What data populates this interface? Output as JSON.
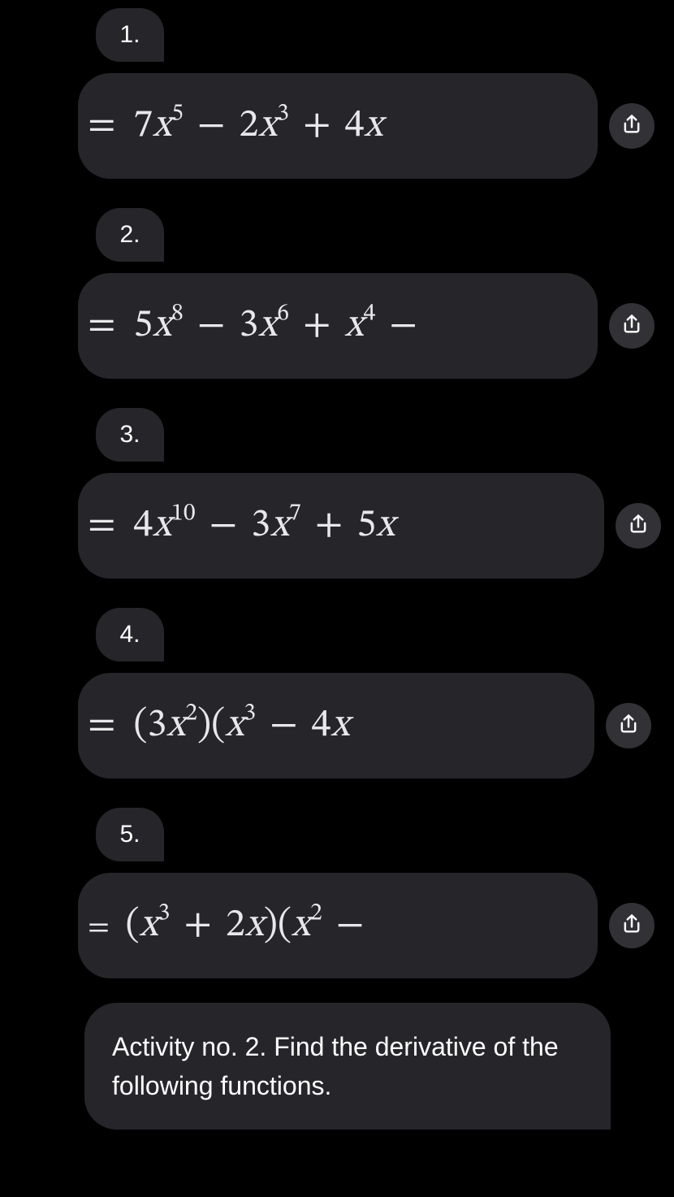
{
  "colors": {
    "background": "#000000",
    "bubble_bg": "#26262a",
    "share_bg": "#323236",
    "text": "#ffffff",
    "equation_text": "#e8e8ea"
  },
  "typography": {
    "number_fontsize": 30,
    "equation_fontsize": 48,
    "activity_fontsize": 32,
    "equation_font": "Cambria Math / STIX serif italic",
    "ui_font": "system sans-serif"
  },
  "problems": [
    {
      "number": "1.",
      "equation_html": "<span class='leadeq'>=</span> 7<span class='it'>x</span><sup>5</sup> <span class='op'>−</span> 2<span class='it'>x</span><sup>3</sup> <span class='op'>+</span> 4<span class='it'>x</span>",
      "equation_text": "= 7x^5 − 2x^3 + 4x"
    },
    {
      "number": "2.",
      "equation_html": "<span class='leadeq'>=</span> 5<span class='it'>x</span><sup>8</sup> <span class='op'>−</span> 3<span class='it'>x</span><sup>6</sup> <span class='op'>+</span> <span class='it'>x</span><sup>4</sup> <span class='op'>−</span>",
      "equation_text": "= 5x^8 − 3x^6 + x^4 −"
    },
    {
      "number": "3.",
      "equation_html": "<span class='leadeq'>=</span> 4<span class='it'>x</span><sup>10</sup> <span class='op'>−</span> 3<span class='it'>x</span><sup>7</sup> <span class='op'>+</span> 5<span class='it'>x</span>",
      "equation_text": "= 4x^10 − 3x^7 + 5x"
    },
    {
      "number": "4.",
      "equation_html": "<span class='leadeq'>=</span> (3<span class='it'>x</span><sup>2</sup>)(<span class='it'>x</span><sup>3</sup> <span class='op'>−</span> 4<span class='it'>x</span>",
      "equation_text": "= (3x^2)(x^3 − 4x"
    },
    {
      "number": "5.",
      "equation_html": "<span class='leadeq' style='font-size:0.78em'>=</span> (<span class='it'>x</span><sup>3</sup> <span class='op'>+</span> 2<span class='it'>x</span>)(<span class='it'>x</span><sup>2</sup> <span class='op'>−</span>",
      "equation_text": "= (x^3 + 2x)(x^2 −"
    }
  ],
  "activity_text": "Activity no. 2. Find the derivative of the following functions.",
  "share_icon_semantic": "share-icon"
}
